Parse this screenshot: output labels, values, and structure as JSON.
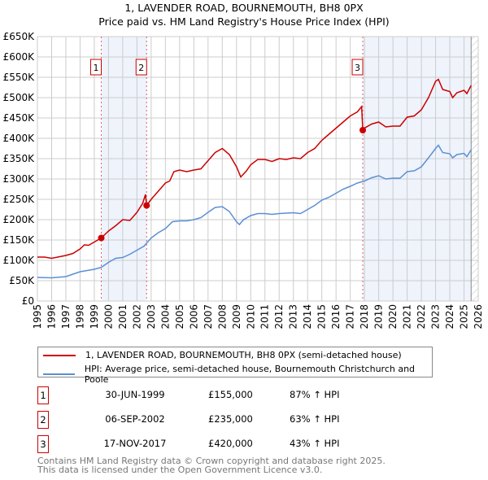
{
  "chart_data": {
    "type": "line",
    "title": "1, LAVENDER ROAD, BOURNEMOUTH, BH8 0PX",
    "subtitle": "Price paid vs. HM Land Registry's House Price Index (HPI)",
    "xlim": [
      1995,
      2026
    ],
    "ylim": [
      0,
      650000
    ],
    "y_ticks": [
      "£0",
      "£50K",
      "£100K",
      "£150K",
      "£200K",
      "£250K",
      "£300K",
      "£350K",
      "£400K",
      "£450K",
      "£500K",
      "£550K",
      "£600K",
      "£650K"
    ],
    "x_ticks": [
      "1995",
      "1996",
      "1997",
      "1998",
      "1999",
      "2000",
      "2001",
      "2002",
      "2003",
      "2004",
      "2005",
      "2006",
      "2007",
      "2008",
      "2009",
      "2010",
      "2011",
      "2012",
      "2013",
      "2014",
      "2015",
      "2016",
      "2017",
      "2018",
      "2019",
      "2020",
      "2021",
      "2022",
      "2023",
      "2024",
      "2025",
      "2026"
    ],
    "grid": true,
    "colors": {
      "property": "#cc0000",
      "hpi": "#5b8fd4",
      "shade": "#eef3fc"
    },
    "shaded_ranges": [
      [
        1999.5,
        2002.68
      ],
      [
        2017.88,
        2025.5
      ]
    ],
    "future_hatch_from": 2025.5,
    "series": [
      {
        "name": "1, LAVENDER ROAD, BOURNEMOUTH, BH8 0PX (semi-detached house)",
        "x": [
          1995,
          1995.5,
          1996,
          1997,
          1997.5,
          1998,
          1998.3,
          1998.6,
          1999,
          1999.49,
          2000,
          2000.5,
          2001,
          2001.5,
          2002,
          2002.4,
          2002.6,
          2002.68,
          2003,
          2003.5,
          2004,
          2004.3,
          2004.6,
          2005,
          2005.5,
          2006,
          2006.5,
          2007,
          2007.5,
          2008,
          2008.5,
          2009,
          2009.3,
          2009.7,
          2010,
          2010.5,
          2011,
          2011.5,
          2012,
          2012.5,
          2013,
          2013.5,
          2014,
          2014.5,
          2015,
          2015.5,
          2016,
          2016.5,
          2017,
          2017.5,
          2017.8,
          2017.88,
          2018,
          2018.5,
          2019,
          2019.5,
          2020,
          2020.5,
          2021,
          2021.5,
          2022,
          2022.5,
          2023,
          2023.2,
          2023.5,
          2024,
          2024.2,
          2024.5,
          2025,
          2025.2,
          2025.5
        ],
        "values": [
          108,
          108,
          105,
          112,
          117,
          128,
          138,
          137,
          145,
          155,
          172,
          185,
          200,
          198,
          218,
          240,
          262,
          235,
          250,
          270,
          290,
          295,
          318,
          322,
          318,
          322,
          325,
          345,
          365,
          375,
          360,
          330,
          305,
          320,
          335,
          348,
          348,
          343,
          350,
          348,
          352,
          350,
          365,
          375,
          395,
          410,
          425,
          440,
          455,
          465,
          478,
          420,
          425,
          435,
          440,
          428,
          430,
          430,
          452,
          455,
          470,
          500,
          540,
          545,
          520,
          515,
          500,
          512,
          518,
          510,
          530
        ]
      },
      {
        "name": "HPI: Average price, semi-detached house, Bournemouth Christchurch and Poole",
        "x": [
          1995,
          1996,
          1997,
          1998,
          1999,
          1999.5,
          2000,
          2000.5,
          2001,
          2001.5,
          2002,
          2002.5,
          2003,
          2003.5,
          2004,
          2004.5,
          2005,
          2005.5,
          2006,
          2006.5,
          2007,
          2007.5,
          2008,
          2008.5,
          2009,
          2009.2,
          2009.5,
          2010,
          2010.5,
          2011,
          2011.5,
          2012,
          2013,
          2013.5,
          2014,
          2014.5,
          2015,
          2015.5,
          2016,
          2016.5,
          2017,
          2017.5,
          2018,
          2018.5,
          2019,
          2019.5,
          2020,
          2020.5,
          2021,
          2021.5,
          2022,
          2022.5,
          2023,
          2023.2,
          2023.5,
          2024,
          2024.2,
          2024.5,
          2025,
          2025.2,
          2025.5
        ],
        "values": [
          58,
          57,
          60,
          72,
          78,
          83,
          95,
          105,
          107,
          115,
          125,
          135,
          155,
          168,
          178,
          195,
          197,
          197,
          200,
          205,
          218,
          230,
          232,
          220,
          195,
          188,
          200,
          210,
          215,
          215,
          213,
          215,
          217,
          215,
          225,
          235,
          248,
          255,
          265,
          275,
          282,
          290,
          295,
          303,
          308,
          300,
          302,
          302,
          318,
          320,
          330,
          352,
          375,
          383,
          365,
          362,
          352,
          360,
          363,
          355,
          372
        ]
      }
    ],
    "markers": [
      {
        "label": "1",
        "x": 1999.49,
        "value": 155
      },
      {
        "label": "2",
        "x": 2002.68,
        "value": 235
      },
      {
        "label": "3",
        "x": 2017.88,
        "value": 420
      }
    ]
  },
  "legend": [
    "1, LAVENDER ROAD, BOURNEMOUTH, BH8 0PX (semi-detached house)",
    "HPI: Average price, semi-detached house, Bournemouth Christchurch and Poole"
  ],
  "transactions": [
    {
      "num": "1",
      "date": "30-JUN-1999",
      "price": "£155,000",
      "hpi": "87% ↑ HPI"
    },
    {
      "num": "2",
      "date": "06-SEP-2002",
      "price": "£235,000",
      "hpi": "63% ↑ HPI"
    },
    {
      "num": "3",
      "date": "17-NOV-2017",
      "price": "£420,000",
      "hpi": "43% ↑ HPI"
    }
  ],
  "footer": [
    "Contains HM Land Registry data © Crown copyright and database right 2025.",
    "This data is licensed under the Open Government Licence v3.0."
  ]
}
